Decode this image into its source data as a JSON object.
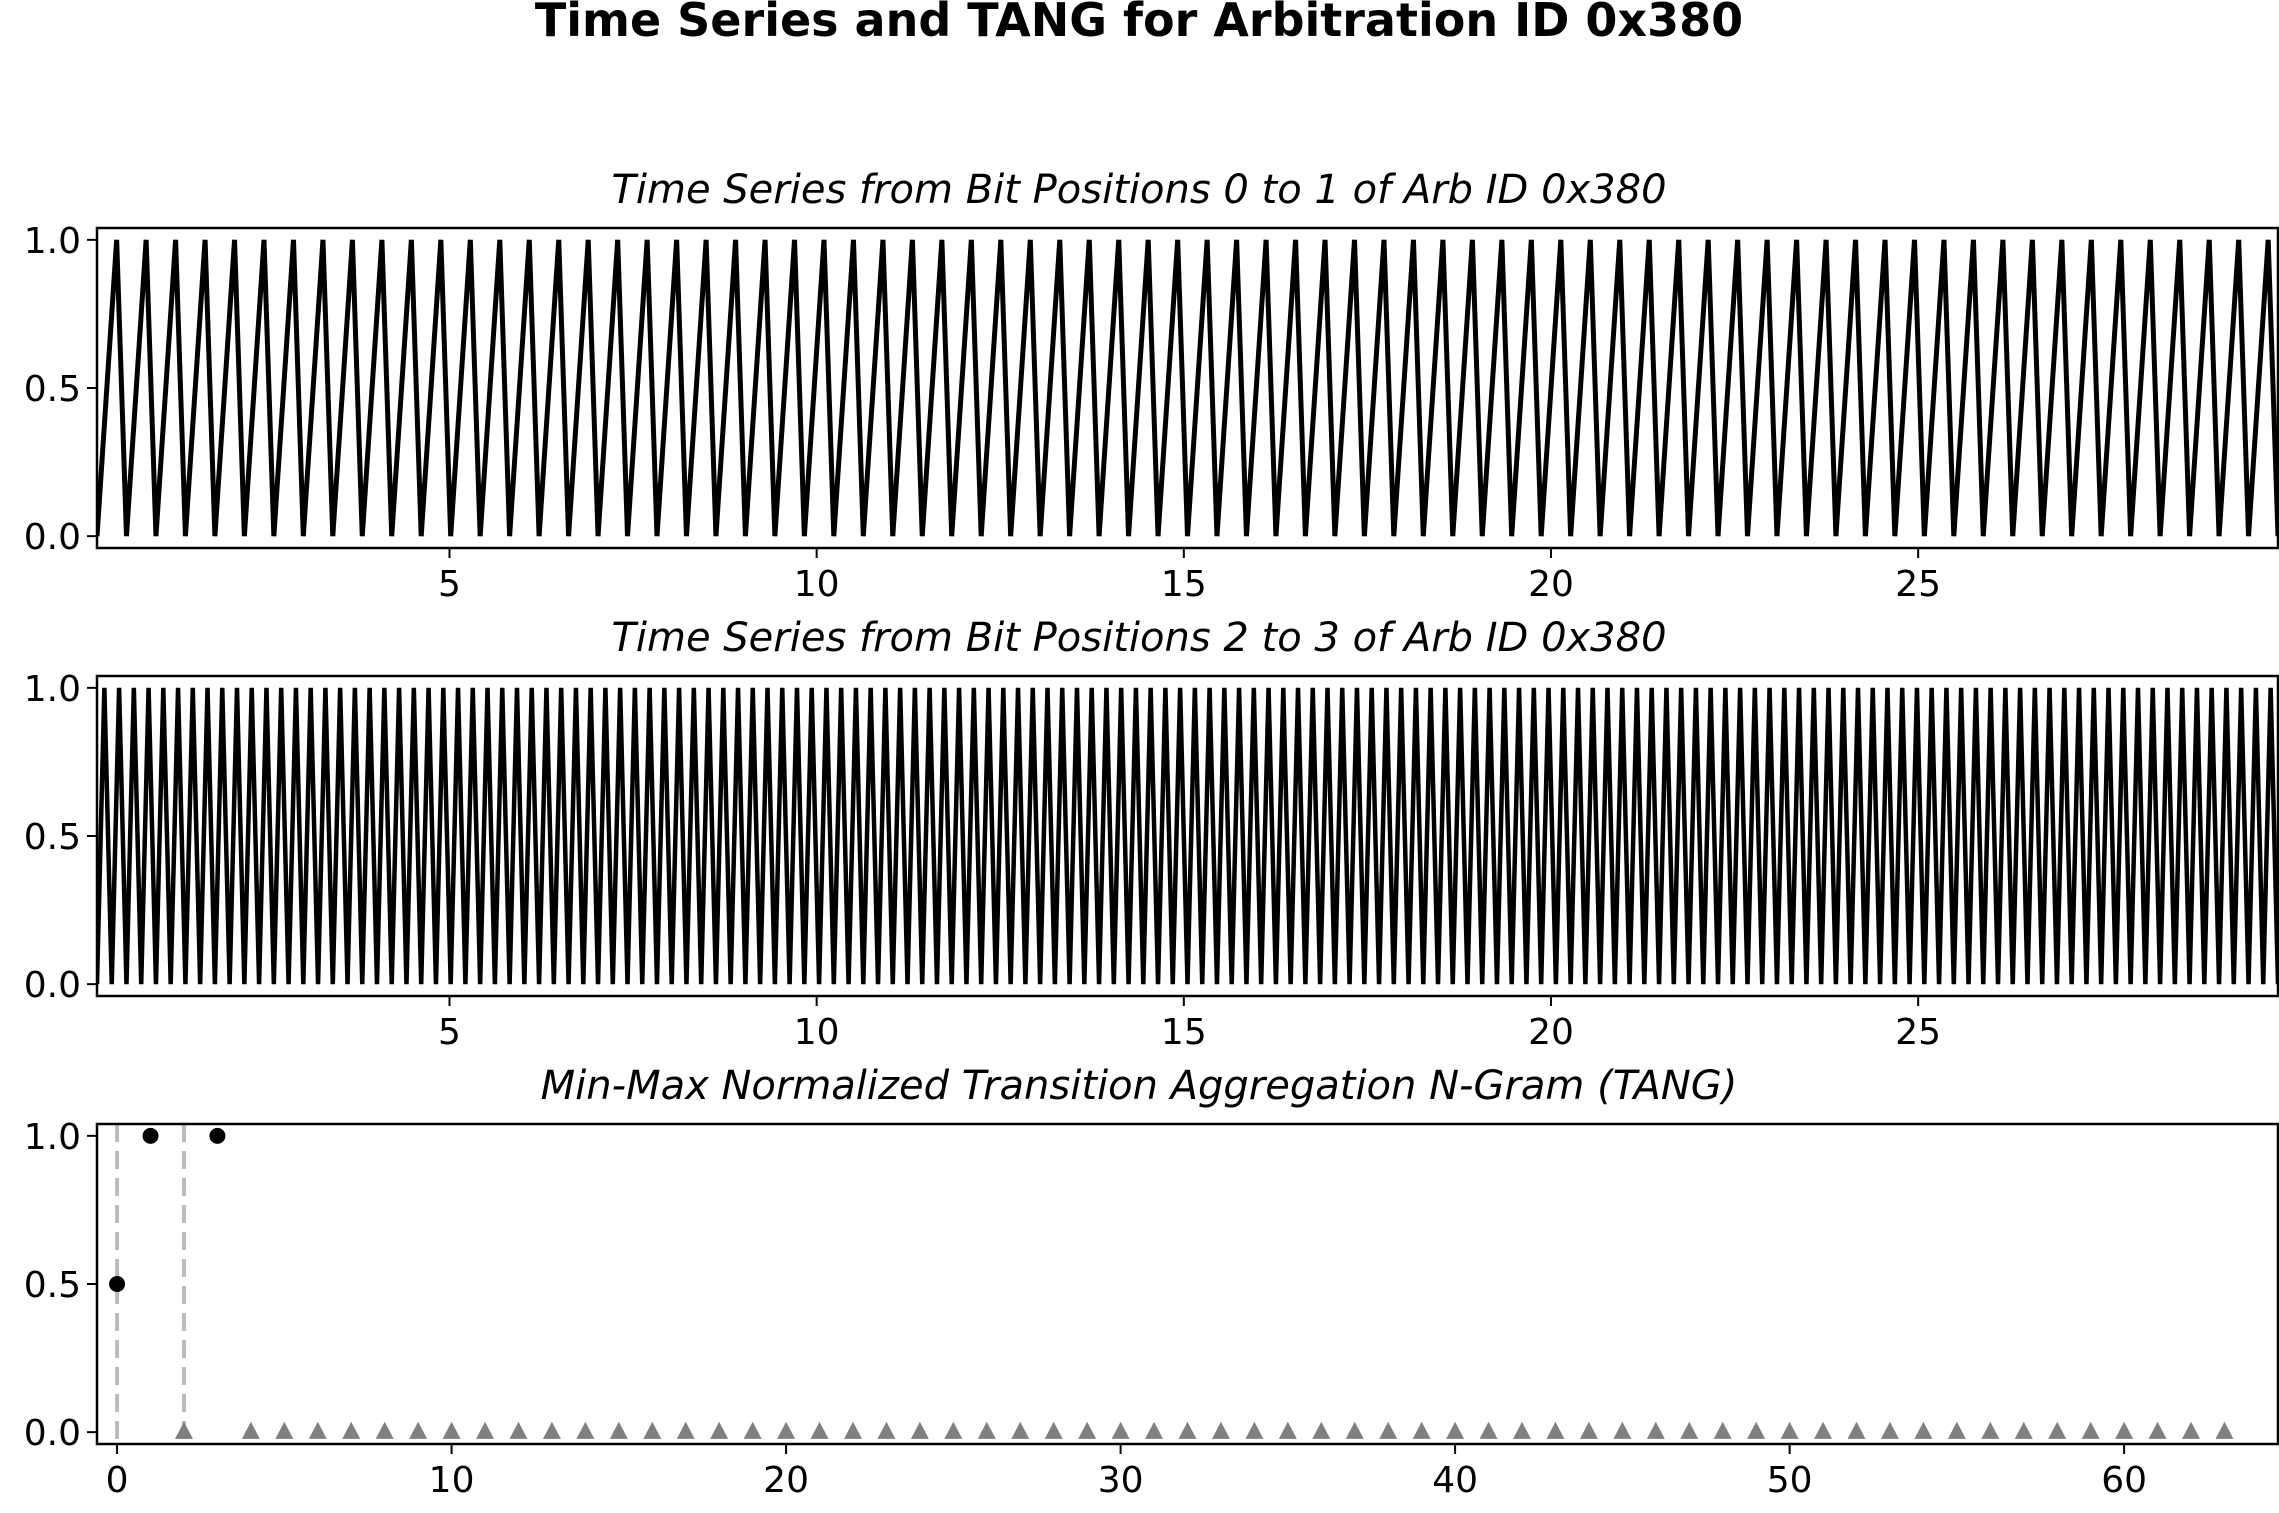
{
  "figure": {
    "title": "Time Series and TANG for Arbitration ID 0x380"
  },
  "chart_data": [
    {
      "type": "line",
      "title": "Time Series from Bit Positions 0 to 1 of Arb ID 0x380",
      "xlabel": "",
      "ylabel": "",
      "xlim": [
        0.2,
        29.9
      ],
      "ylim": [
        -0.04,
        1.04
      ],
      "x_ticks": [
        5,
        10,
        15,
        20,
        25
      ],
      "y_ticks": [
        0.0,
        0.5,
        1.0
      ],
      "grid": false,
      "series": [
        {
          "pattern": "repeating 0 → 0.5 → 1.0 → 0 (sawtooth, 74 cycles)",
          "x_start": 0.2,
          "x_end": 29.9,
          "cycle_values": [
            0,
            0.5,
            1.0
          ]
        }
      ],
      "color": "#000000"
    },
    {
      "type": "line",
      "title": "Time Series from Bit Positions 2 to 3 of Arb ID 0x380",
      "xlabel": "",
      "ylabel": "",
      "xlim": [
        0.2,
        29.9
      ],
      "ylim": [
        -0.04,
        1.04
      ],
      "x_ticks": [
        5,
        10,
        15,
        20,
        25
      ],
      "y_ticks": [
        0.0,
        0.5,
        1.0
      ],
      "grid": false,
      "series": [
        {
          "pattern": "alternating 0 ↔ 1.0 (148 cycles)",
          "x_start": 0.2,
          "x_end": 29.9,
          "cycle_values": [
            0,
            1.0
          ]
        }
      ],
      "color": "#000000"
    },
    {
      "type": "scatter",
      "title": "Min-Max Normalized Transition Aggregation N-Gram (TANG)",
      "xlabel": "",
      "ylabel": "",
      "xlim": [
        -0.6,
        64.6
      ],
      "ylim": [
        -0.04,
        1.04
      ],
      "x_ticks": [
        0,
        10,
        20,
        30,
        40,
        50,
        60
      ],
      "y_ticks": [
        0.0,
        0.5,
        1.0
      ],
      "grid": false,
      "points": [
        {
          "x": 0,
          "y": 0.5
        },
        {
          "x": 1,
          "y": 1.0
        },
        {
          "x": 3,
          "y": 1.0
        }
      ],
      "zero_markers": {
        "x_values": [
          2,
          4,
          5,
          6,
          7,
          8,
          9,
          10,
          11,
          12,
          13,
          14,
          15,
          16,
          17,
          18,
          19,
          20,
          21,
          22,
          23,
          24,
          25,
          26,
          27,
          28,
          29,
          30,
          31,
          32,
          33,
          34,
          35,
          36,
          37,
          38,
          39,
          40,
          41,
          42,
          43,
          44,
          45,
          46,
          47,
          48,
          49,
          50,
          51,
          52,
          53,
          54,
          55,
          56,
          57,
          58,
          59,
          60,
          61,
          62,
          63
        ],
        "y": 0.0,
        "marker": "triangle",
        "color": "#808080"
      },
      "vertical_lines": [
        0,
        2
      ],
      "vertical_line_color": "#bbbbbb",
      "point_color": "#000000"
    }
  ]
}
